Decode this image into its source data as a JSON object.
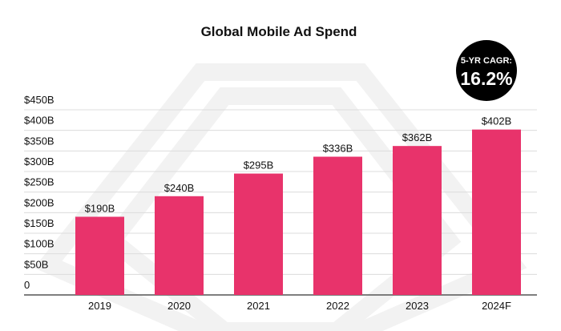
{
  "chart_data": {
    "type": "bar",
    "title": "Global Mobile Ad Spend",
    "categories": [
      "2019",
      "2020",
      "2021",
      "2022",
      "2023",
      "2024F"
    ],
    "values": [
      190,
      240,
      295,
      336,
      362,
      402
    ],
    "data_labels": [
      "$190B",
      "$240B",
      "$295B",
      "$336B",
      "$362B",
      "$402B"
    ],
    "yticks": [
      0,
      50,
      100,
      150,
      200,
      250,
      300,
      350,
      400,
      450
    ],
    "ytick_labels": [
      "0",
      "$50B",
      "$100B",
      "$150B",
      "$200B",
      "$250B",
      "$300B",
      "$350B",
      "$400B",
      "$450B"
    ],
    "ylim": [
      0,
      450
    ],
    "grid": true,
    "xlabel": "",
    "ylabel": "",
    "bar_color": "#E8336B",
    "annotation": {
      "label": "5-YR CAGR:",
      "value": "16.2%",
      "color": "#000000"
    }
  }
}
